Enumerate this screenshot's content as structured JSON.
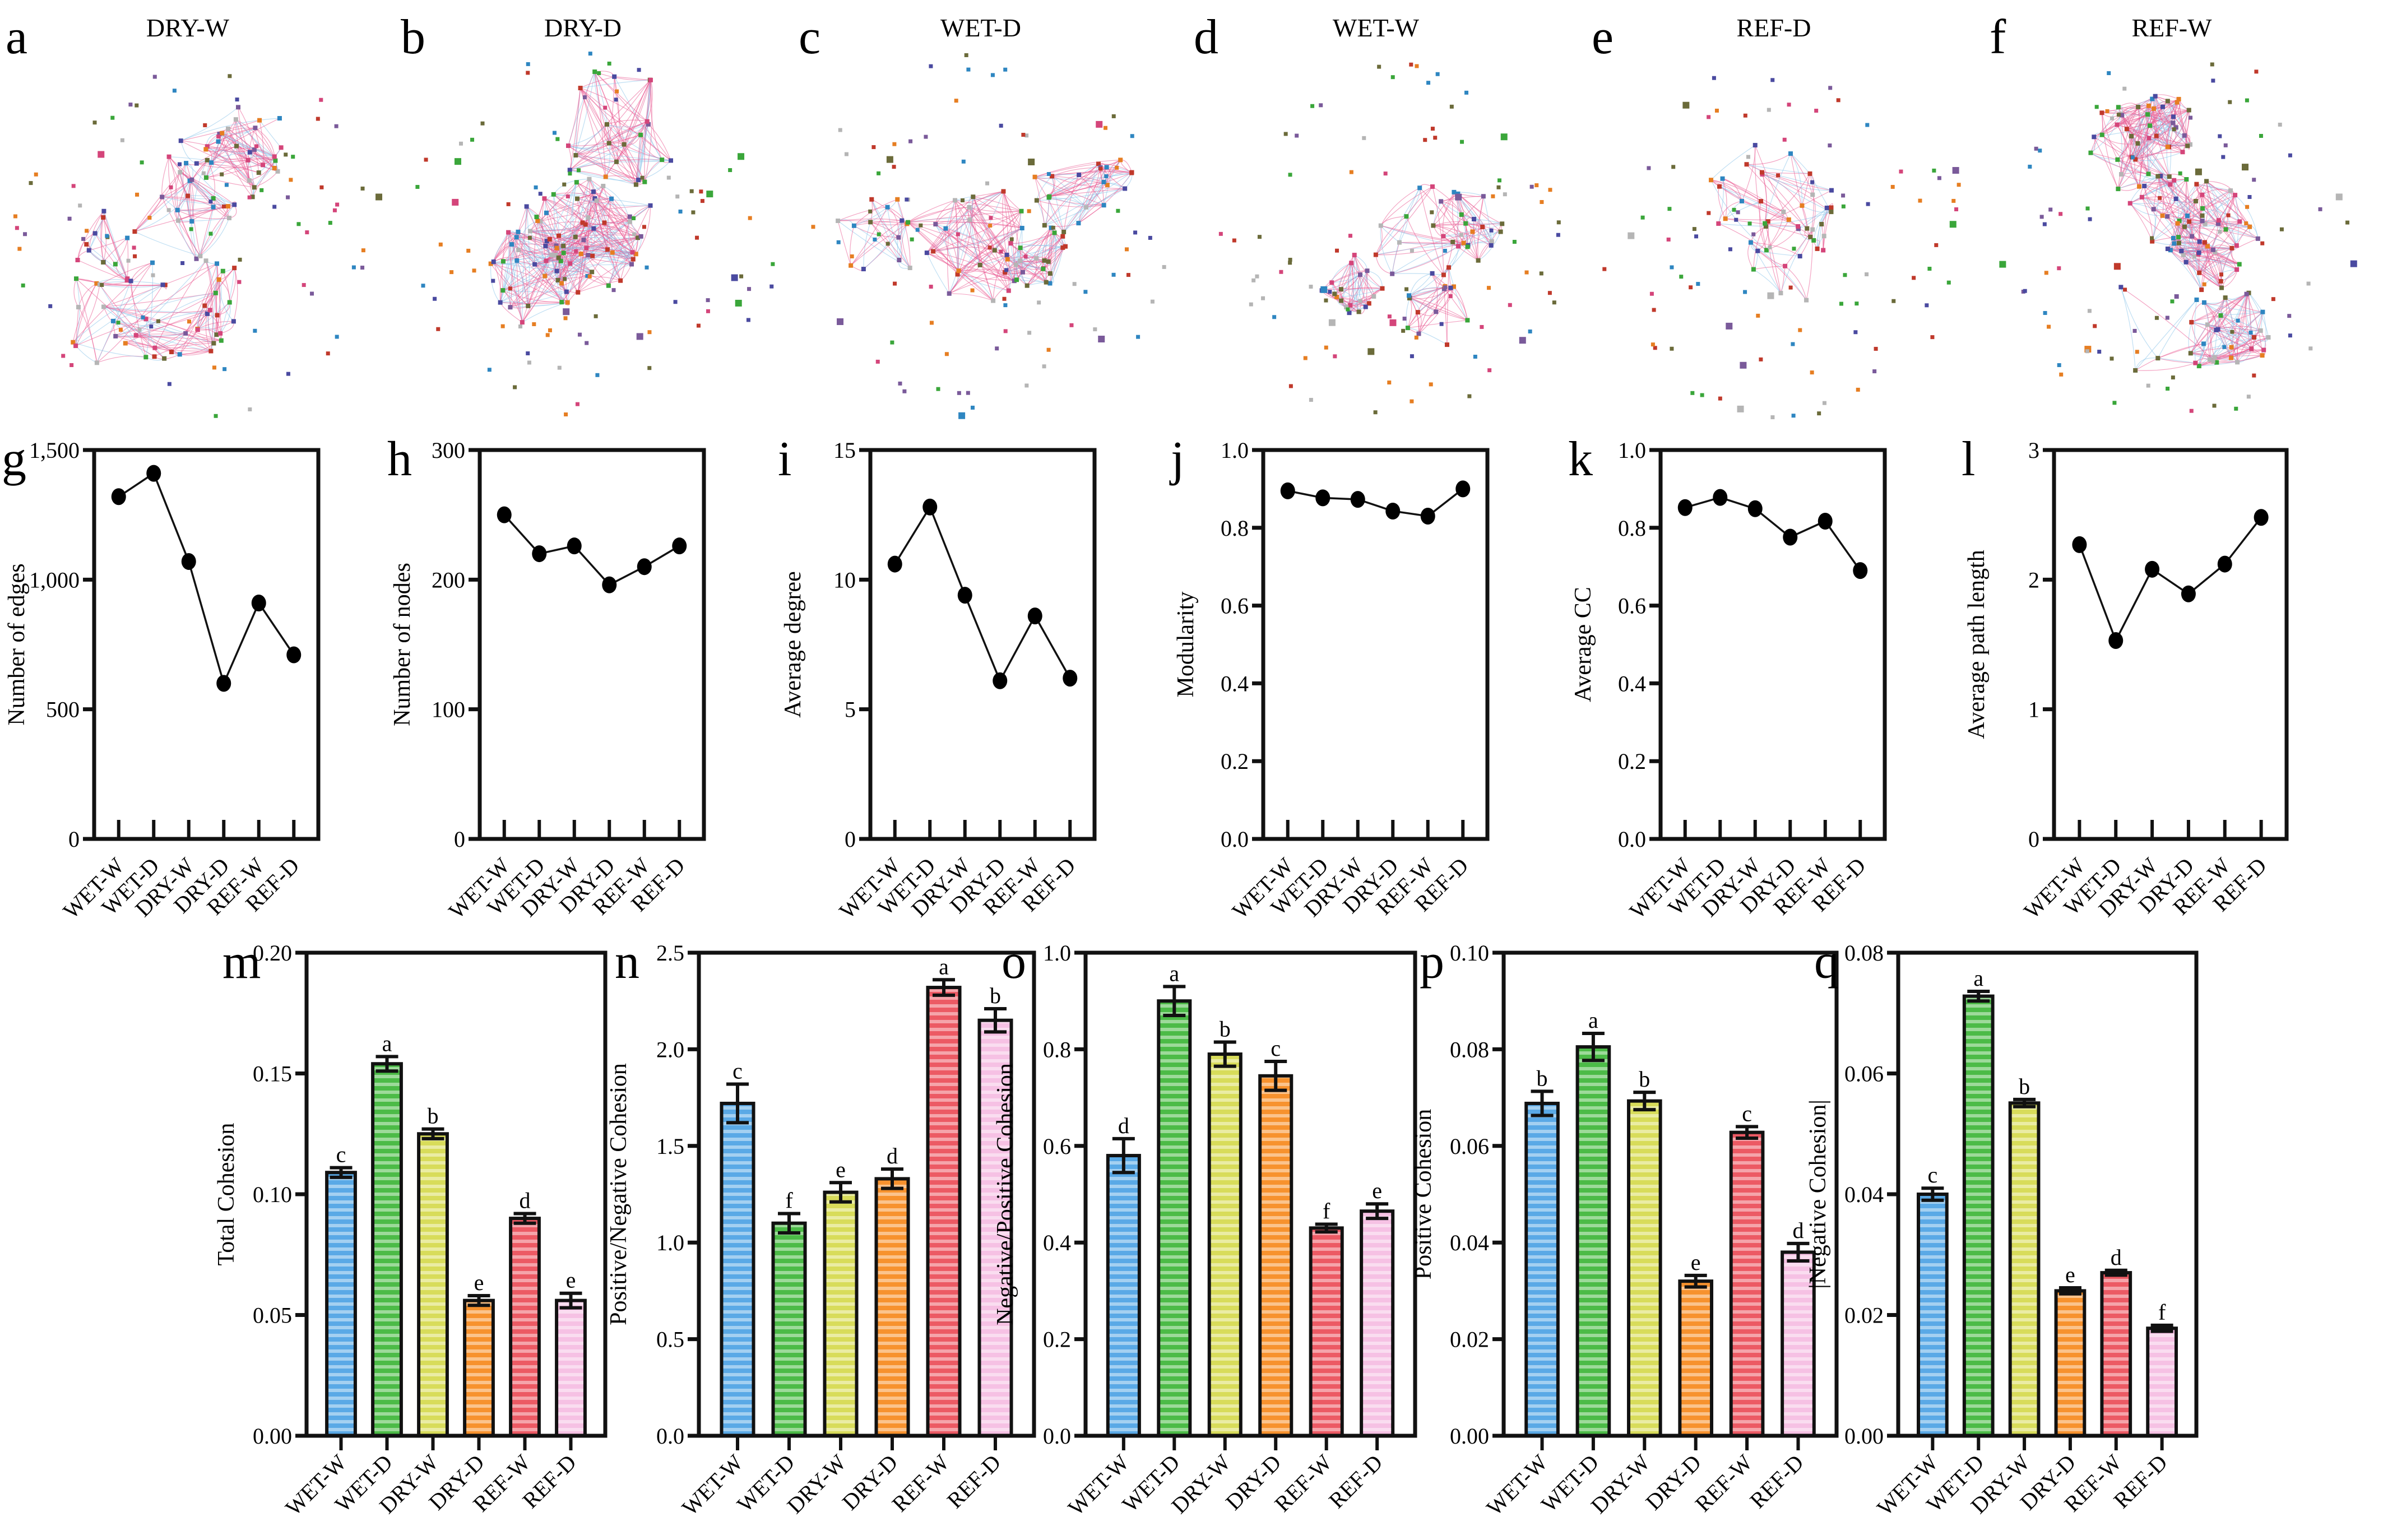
{
  "figure": {
    "groups": [
      "WET-W",
      "WET-D",
      "DRY-W",
      "DRY-D",
      "REF-W",
      "REF-D"
    ],
    "group_colors": {
      "WET-W": "#5aa9e6",
      "WET-D": "#4cbb47",
      "DRY-W": "#d8dc5a",
      "DRY-D": "#f7922e",
      "REF-W": "#ec5a64",
      "REF-D": "#f6c1e4"
    },
    "network_edge_colors": {
      "positive": "#ea5a92",
      "negative": "#8cc4ea"
    },
    "node_colors": [
      "#4a4aa0",
      "#c0392b",
      "#3aa63a",
      "#7a5a9a",
      "#e67e22",
      "#b5b5b5",
      "#6b6b3a",
      "#d4457a",
      "#2e86c1"
    ]
  },
  "networks": [
    {
      "panel": "a",
      "title": "DRY-W"
    },
    {
      "panel": "b",
      "title": "DRY-D"
    },
    {
      "panel": "c",
      "title": "WET-D"
    },
    {
      "panel": "d",
      "title": "WET-W"
    },
    {
      "panel": "e",
      "title": "REF-D"
    },
    {
      "panel": "f",
      "title": "REF-W"
    }
  ],
  "chart_data": [
    {
      "panel": "g",
      "type": "line",
      "title": "",
      "xlabel": "",
      "ylabel": "Number of edges",
      "categories": [
        "WET-W",
        "WET-D",
        "DRY-W",
        "DRY-D",
        "REF-W",
        "REF-D"
      ],
      "values": [
        1320,
        1410,
        1070,
        600,
        910,
        710
      ],
      "ylim": [
        0,
        1500
      ],
      "yticks": [
        0,
        500,
        1000,
        1500
      ],
      "ytick_labels": [
        "0",
        "500",
        "1,000",
        "1,500"
      ],
      "grid": false
    },
    {
      "panel": "h",
      "type": "line",
      "title": "",
      "xlabel": "",
      "ylabel": "Number of nodes",
      "categories": [
        "WET-W",
        "WET-D",
        "DRY-W",
        "DRY-D",
        "REF-W",
        "REF-D"
      ],
      "values": [
        250,
        220,
        226,
        196,
        210,
        226
      ],
      "ylim": [
        0,
        300
      ],
      "yticks": [
        0,
        100,
        200,
        300
      ],
      "ytick_labels": [
        "0",
        "100",
        "200",
        "300"
      ],
      "grid": false
    },
    {
      "panel": "i",
      "type": "line",
      "title": "",
      "xlabel": "",
      "ylabel": "Average degree",
      "categories": [
        "WET-W",
        "WET-D",
        "DRY-W",
        "DRY-D",
        "REF-W",
        "REF-D"
      ],
      "values": [
        10.6,
        12.8,
        9.4,
        6.1,
        8.6,
        6.2
      ],
      "ylim": [
        0,
        15
      ],
      "yticks": [
        0,
        5,
        10,
        15
      ],
      "ytick_labels": [
        "0",
        "5",
        "10",
        "15"
      ],
      "grid": false
    },
    {
      "panel": "j",
      "type": "line",
      "title": "",
      "xlabel": "",
      "ylabel": "Modularity",
      "categories": [
        "WET-W",
        "WET-D",
        "DRY-W",
        "DRY-D",
        "REF-W",
        "REF-D"
      ],
      "values": [
        0.895,
        0.877,
        0.873,
        0.843,
        0.83,
        0.9
      ],
      "ylim": [
        0,
        1.0
      ],
      "yticks": [
        0,
        0.2,
        0.4,
        0.6,
        0.8,
        1.0
      ],
      "ytick_labels": [
        "0.0",
        "0.2",
        "0.4",
        "0.6",
        "0.8",
        "1.0"
      ],
      "grid": false
    },
    {
      "panel": "k",
      "type": "line",
      "title": "",
      "xlabel": "",
      "ylabel": "Average CC",
      "categories": [
        "WET-W",
        "WET-D",
        "DRY-W",
        "DRY-D",
        "REF-W",
        "REF-D"
      ],
      "values": [
        0.852,
        0.878,
        0.849,
        0.776,
        0.817,
        0.69
      ],
      "ylim": [
        0,
        1.0
      ],
      "yticks": [
        0,
        0.2,
        0.4,
        0.6,
        0.8,
        1.0
      ],
      "ytick_labels": [
        "0.0",
        "0.2",
        "0.4",
        "0.6",
        "0.8",
        "1.0"
      ],
      "grid": false
    },
    {
      "panel": "l",
      "type": "line",
      "title": "",
      "xlabel": "",
      "ylabel": "Average path length",
      "categories": [
        "WET-W",
        "WET-D",
        "DRY-W",
        "DRY-D",
        "REF-W",
        "REF-D"
      ],
      "values": [
        2.27,
        1.53,
        2.08,
        1.89,
        2.12,
        2.48
      ],
      "ylim": [
        0,
        3
      ],
      "yticks": [
        0,
        1,
        2,
        3
      ],
      "ytick_labels": [
        "0",
        "1",
        "2",
        "3"
      ],
      "grid": false
    },
    {
      "panel": "m",
      "type": "bar",
      "title": "",
      "xlabel": "",
      "ylabel": "Total Cohesion",
      "categories": [
        "WET-W",
        "WET-D",
        "DRY-W",
        "DRY-D",
        "REF-W",
        "REF-D"
      ],
      "values": [
        0.109,
        0.154,
        0.125,
        0.056,
        0.09,
        0.056
      ],
      "errors": [
        0.002,
        0.003,
        0.002,
        0.002,
        0.002,
        0.003
      ],
      "letters": [
        "c",
        "a",
        "b",
        "e",
        "d",
        "e"
      ],
      "ylim": [
        0,
        0.2
      ],
      "yticks": [
        0,
        0.05,
        0.1,
        0.15,
        0.2
      ],
      "ytick_labels": [
        "0.00",
        "0.05",
        "0.10",
        "0.15",
        "0.20"
      ],
      "grid": false
    },
    {
      "panel": "n",
      "type": "bar",
      "title": "",
      "xlabel": "",
      "ylabel": "Positive/Negative Cohesion",
      "categories": [
        "WET-W",
        "WET-D",
        "DRY-W",
        "DRY-D",
        "REF-W",
        "REF-D"
      ],
      "values": [
        1.72,
        1.1,
        1.26,
        1.33,
        2.32,
        2.15
      ],
      "errors": [
        0.1,
        0.05,
        0.05,
        0.05,
        0.04,
        0.06
      ],
      "letters": [
        "c",
        "f",
        "e",
        "d",
        "a",
        "b"
      ],
      "ylim": [
        0,
        2.5
      ],
      "yticks": [
        0,
        0.5,
        1.0,
        1.5,
        2.0,
        2.5
      ],
      "ytick_labels": [
        "0.0",
        "0.5",
        "1.0",
        "1.5",
        "2.0",
        "2.5"
      ],
      "grid": false
    },
    {
      "panel": "o",
      "type": "bar",
      "title": "",
      "xlabel": "",
      "ylabel": "Negative/Positive Cohesion",
      "categories": [
        "WET-W",
        "WET-D",
        "DRY-W",
        "DRY-D",
        "REF-W",
        "REF-D"
      ],
      "values": [
        0.58,
        0.9,
        0.79,
        0.745,
        0.43,
        0.465
      ],
      "errors": [
        0.035,
        0.03,
        0.025,
        0.03,
        0.008,
        0.015
      ],
      "letters": [
        "d",
        "a",
        "b",
        "c",
        "f",
        "e"
      ],
      "ylim": [
        0,
        1.0
      ],
      "yticks": [
        0,
        0.2,
        0.4,
        0.6,
        0.8,
        1.0
      ],
      "ytick_labels": [
        "0.0",
        "0.2",
        "0.4",
        "0.6",
        "0.8",
        "1.0"
      ],
      "grid": false
    },
    {
      "panel": "p",
      "type": "bar",
      "title": "",
      "xlabel": "",
      "ylabel": "Positive Cohesion",
      "categories": [
        "WET-W",
        "WET-D",
        "DRY-W",
        "DRY-D",
        "REF-W",
        "REF-D"
      ],
      "values": [
        0.0688,
        0.0805,
        0.0693,
        0.032,
        0.0628,
        0.038
      ],
      "errors": [
        0.0025,
        0.0028,
        0.0018,
        0.0012,
        0.0012,
        0.0018
      ],
      "letters": [
        "b",
        "a",
        "b",
        "e",
        "c",
        "d"
      ],
      "ylim": [
        0,
        0.1
      ],
      "yticks": [
        0,
        0.02,
        0.04,
        0.06,
        0.08,
        0.1
      ],
      "ytick_labels": [
        "0.00",
        "0.02",
        "0.04",
        "0.06",
        "0.08",
        "0.10"
      ],
      "grid": false
    },
    {
      "panel": "q",
      "type": "bar",
      "title": "",
      "xlabel": "",
      "ylabel": "|Negative Cohesion|",
      "categories": [
        "WET-W",
        "WET-D",
        "DRY-W",
        "DRY-D",
        "REF-W",
        "REF-D"
      ],
      "values": [
        0.04,
        0.0728,
        0.0551,
        0.024,
        0.027,
        0.0178
      ],
      "errors": [
        0.001,
        0.0008,
        0.0006,
        0.0005,
        0.0004,
        0.0005
      ],
      "letters": [
        "c",
        "a",
        "b",
        "e",
        "d",
        "f"
      ],
      "ylim": [
        0,
        0.08
      ],
      "yticks": [
        0,
        0.02,
        0.04,
        0.06,
        0.08
      ],
      "ytick_labels": [
        "0.00",
        "0.02",
        "0.04",
        "0.06",
        "0.08"
      ],
      "grid": false
    }
  ]
}
